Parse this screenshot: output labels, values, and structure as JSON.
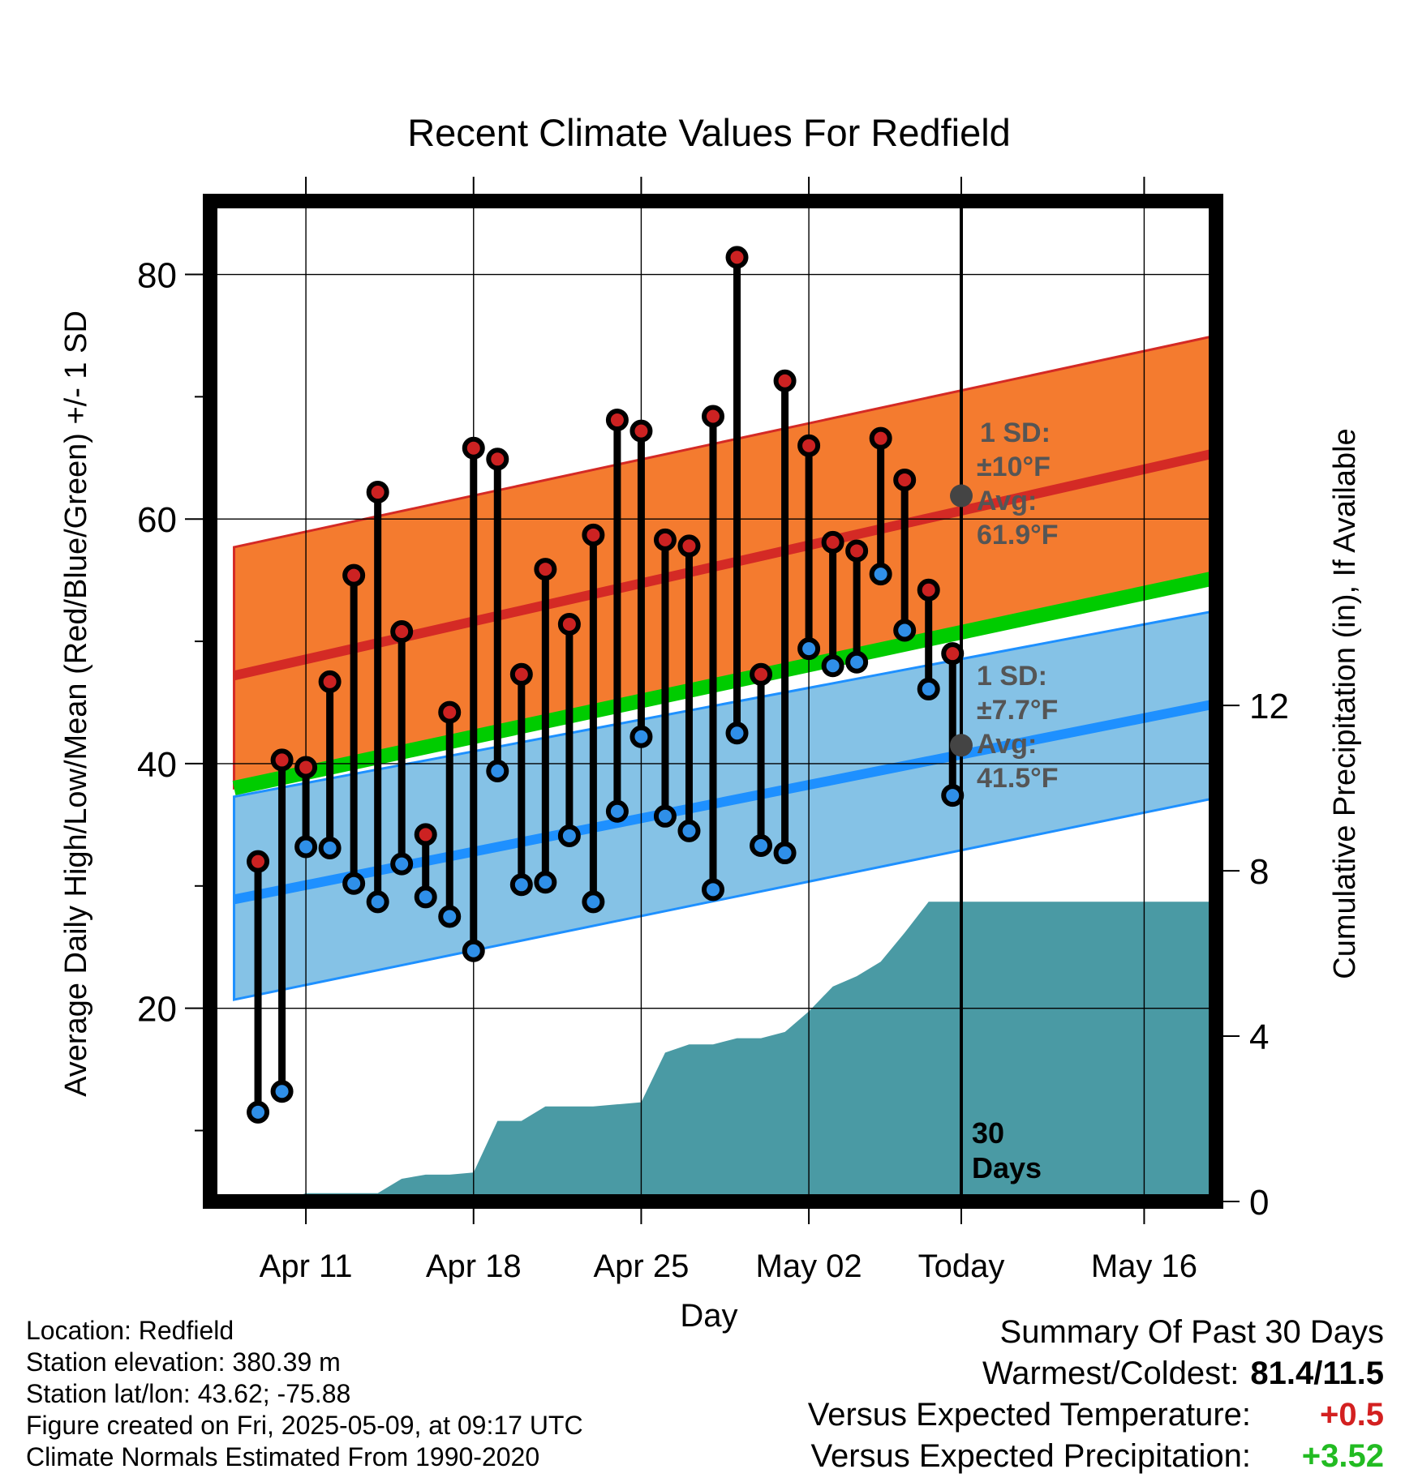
{
  "chart_data": {
    "type": "line",
    "title": "Recent Climate Values For Redfield",
    "xlabel": "Day",
    "ylabel_left": "Average Daily High/Low/Mean (Red/Blue/Green) +/- 1 SD",
    "ylabel_right": "Cumulative Precipitation (in), If Available",
    "x_ticks": [
      "Apr 11",
      "Apr 18",
      "Apr 25",
      "May 02",
      "Today",
      "May 16"
    ],
    "x_range": [
      "Apr 07",
      "May 19"
    ],
    "y_left_ticks": [
      20,
      40,
      60,
      80
    ],
    "y_left_range": [
      4.2,
      86
    ],
    "y_right_ticks": [
      0,
      4,
      8,
      12
    ],
    "y_right_range": [
      0,
      24.2
    ],
    "grid": true,
    "normals": {
      "dates": [
        "Apr 08",
        "May 19"
      ],
      "high_avg": [
        47.2,
        65.4
      ],
      "high_upper": [
        57.7,
        75.0
      ],
      "high_lower": [
        38.0,
        55.7
      ],
      "low_avg": [
        28.9,
        44.9
      ],
      "low_upper": [
        37.3,
        52.5
      ],
      "low_lower": [
        20.7,
        37.2
      ],
      "mean": [
        38.0,
        55.2
      ]
    },
    "today_annotations": {
      "high_sd_label": "1 SD:",
      "high_sd_value": "±10°F",
      "high_avg_label": "Avg:",
      "high_avg_value": "61.9°F",
      "low_sd_label": "1 SD:",
      "low_sd_value": "±7.7°F",
      "low_avg_label": "Avg:",
      "low_avg_value": "41.5°F",
      "high_avg": 61.9,
      "low_avg": 41.5
    },
    "window_label_1": "30",
    "window_label_2": "Days",
    "daily": {
      "dates": [
        "Apr 09",
        "Apr 10",
        "Apr 11",
        "Apr 12",
        "Apr 13",
        "Apr 14",
        "Apr 15",
        "Apr 16",
        "Apr 17",
        "Apr 18",
        "Apr 19",
        "Apr 20",
        "Apr 21",
        "Apr 22",
        "Apr 23",
        "Apr 24",
        "Apr 25",
        "Apr 26",
        "Apr 27",
        "Apr 28",
        "Apr 29",
        "Apr 30",
        "May 01",
        "May 02",
        "May 03",
        "May 04",
        "May 05",
        "May 06",
        "May 07",
        "May 08"
      ],
      "high": [
        32.0,
        40.3,
        39.7,
        46.7,
        55.4,
        62.2,
        50.8,
        34.2,
        44.2,
        65.8,
        64.9,
        47.3,
        55.9,
        51.4,
        58.7,
        68.1,
        67.2,
        58.3,
        57.8,
        68.4,
        81.4,
        47.3,
        71.3,
        66.0,
        58.1,
        57.4,
        66.6,
        63.2,
        54.2,
        49.0
      ],
      "low": [
        11.5,
        13.2,
        33.2,
        33.1,
        30.2,
        28.7,
        31.8,
        29.1,
        27.5,
        24.7,
        39.4,
        30.1,
        30.3,
        34.1,
        28.7,
        36.1,
        42.2,
        35.7,
        34.5,
        29.7,
        42.5,
        33.3,
        32.7,
        49.4,
        48.0,
        48.3,
        55.5,
        50.9,
        46.1,
        37.4
      ]
    },
    "precip_cumulative": {
      "dates": [
        "Apr 08",
        "Apr 09",
        "Apr 10",
        "Apr 11",
        "Apr 12",
        "Apr 13",
        "Apr 14",
        "Apr 15",
        "Apr 16",
        "Apr 17",
        "Apr 18",
        "Apr 19",
        "Apr 20",
        "Apr 21",
        "Apr 22",
        "Apr 23",
        "Apr 24",
        "Apr 25",
        "Apr 26",
        "Apr 27",
        "Apr 28",
        "Apr 29",
        "Apr 30",
        "May 01",
        "May 02",
        "May 03",
        "May 04",
        "May 05",
        "May 06",
        "May 07",
        "May 08",
        "May 19"
      ],
      "values": [
        0.0,
        0.0,
        0.0,
        0.2,
        0.2,
        0.2,
        0.2,
        0.55,
        0.65,
        0.65,
        0.7,
        1.95,
        1.95,
        2.3,
        2.3,
        2.3,
        2.35,
        2.4,
        3.6,
        3.8,
        3.8,
        3.95,
        3.95,
        4.1,
        4.6,
        5.2,
        5.45,
        5.8,
        6.5,
        7.25,
        7.25,
        7.25
      ]
    }
  },
  "info": {
    "location": "Location: Redfield",
    "elevation": "Station elevation: 380.39 m",
    "latlon": "Station lat/lon: 43.62; -75.88",
    "created": "Figure created on Fri, 2025-05-09, at 09:17 UTC",
    "normals": "Climate Normals Estimated From 1990-2020"
  },
  "summary": {
    "title": "Summary Of Past 30 Days",
    "warmest_label": "Warmest/Coldest:",
    "warmest_value": "81.4/11.5",
    "temp_label": "Versus Expected Temperature:",
    "temp_value": "+0.5",
    "precip_label": "Versus Expected Precipitation:",
    "precip_value": "+3.52"
  },
  "colors": {
    "high_band": "#f47b2f",
    "high_line": "#d42a25",
    "low_band": "#85c2e6",
    "low_line": "#1e90ff",
    "mean_line": "#00cc00",
    "precip": "#4a9aa4",
    "high_marker": "#cc2222",
    "low_marker": "#2f8fe8",
    "annotation": "#555555",
    "summary_warm": "#d32020",
    "summary_wet": "#22bb22"
  }
}
